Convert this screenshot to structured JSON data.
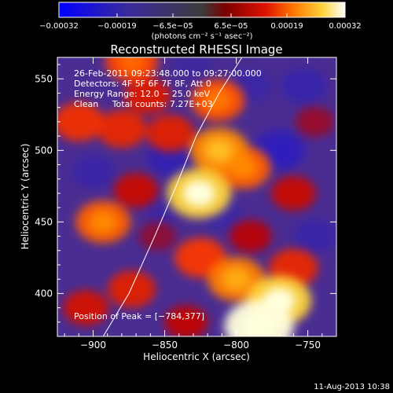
{
  "chart_data": {
    "type": "heatmap",
    "title": "Reconstructed RHESSI Image",
    "xlabel": "Heliocentric X (arcsec)",
    "ylabel": "Heliocentric Y (arcsec)",
    "xlim": [
      -925,
      -730
    ],
    "ylim": [
      370,
      565
    ],
    "xticks": [
      -900,
      -850,
      -800,
      -750
    ],
    "yticks": [
      400,
      450,
      500,
      550
    ],
    "xtick_labels": [
      "−900",
      "−850",
      "−800",
      "−750"
    ],
    "ytick_labels": [
      "400",
      "450",
      "500",
      "550"
    ],
    "colorbar": {
      "ticks": [
        -0.00032,
        -0.00019,
        -6.5e-05,
        6.5e-05,
        0.00019,
        0.00032
      ],
      "tick_labels": [
        "−0.00032",
        "−0.00019",
        "−6.5e−05",
        "6.5e−05",
        "0.00019",
        "0.00032"
      ],
      "unit_label": "(photons cm⁻² s⁻¹ asec⁻²)"
    },
    "annotations": [
      "26-Feb-2011 09:23:48.000 to 09:27:00.000",
      "Detectors: 4F 5F 6F 7F 8F, Att 0",
      "Energy Range: 12.0 − 25.0 keV",
      "Clean     Total counts: 7.27E+03"
    ],
    "peak_label": "Position of Peak = [−784,377]",
    "peak_position": [
      -784,
      377
    ],
    "limb_curve": [
      [
        -893,
        370
      ],
      [
        -875,
        400
      ],
      [
        -857,
        440
      ],
      [
        -842,
        475
      ],
      [
        -828,
        510
      ],
      [
        -812,
        540
      ],
      [
        -796,
        565
      ]
    ],
    "sources": [
      {
        "x": -784,
        "y": 377,
        "value": 0.00032
      },
      {
        "x": -770,
        "y": 395,
        "value": 0.00028
      },
      {
        "x": -800,
        "y": 410,
        "value": 0.00022
      },
      {
        "x": -825,
        "y": 425,
        "value": 0.00017
      },
      {
        "x": -760,
        "y": 418,
        "value": 0.00015
      },
      {
        "x": -826,
        "y": 470,
        "value": 0.00028
      },
      {
        "x": -812,
        "y": 500,
        "value": 0.00023
      },
      {
        "x": -795,
        "y": 488,
        "value": 0.0002
      },
      {
        "x": -813,
        "y": 535,
        "value": 0.00019
      },
      {
        "x": -846,
        "y": 512,
        "value": 0.00014
      },
      {
        "x": -862,
        "y": 538,
        "value": 0.00013
      },
      {
        "x": -873,
        "y": 562,
        "value": 0.00018
      },
      {
        "x": -880,
        "y": 515,
        "value": 0.00015
      },
      {
        "x": -910,
        "y": 520,
        "value": 0.00016
      },
      {
        "x": -893,
        "y": 450,
        "value": 0.0002
      },
      {
        "x": -870,
        "y": 472,
        "value": 0.00011
      },
      {
        "x": -873,
        "y": 403,
        "value": 0.00014
      },
      {
        "x": -905,
        "y": 390,
        "value": 0.00012
      },
      {
        "x": -835,
        "y": 380,
        "value": 0.0001
      },
      {
        "x": -760,
        "y": 470,
        "value": 0.00011
      },
      {
        "x": -790,
        "y": 440,
        "value": 9e-05
      },
      {
        "x": -745,
        "y": 520,
        "value": 6e-05
      },
      {
        "x": -855,
        "y": 440,
        "value": 5e-05
      },
      {
        "x": -845,
        "y": 495,
        "value": -0.00015
      },
      {
        "x": -770,
        "y": 500,
        "value": -0.00018
      },
      {
        "x": -753,
        "y": 545,
        "value": -0.00012
      },
      {
        "x": -900,
        "y": 485,
        "value": -0.0001
      },
      {
        "x": -790,
        "y": 545,
        "value": -9e-05
      },
      {
        "x": -850,
        "y": 460,
        "value": -8e-05
      },
      {
        "x": -810,
        "y": 455,
        "value": -8e-05
      },
      {
        "x": -745,
        "y": 440,
        "value": -0.0001
      },
      {
        "x": -830,
        "y": 560,
        "value": -6e-05
      }
    ]
  },
  "footer": {
    "date": "11-Aug-2013 10:38"
  }
}
